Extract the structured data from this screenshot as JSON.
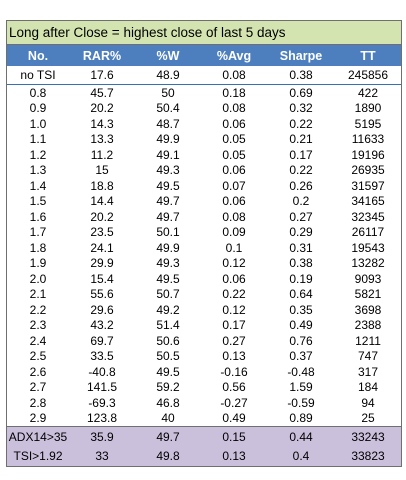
{
  "title": "Long after Close = highest close of last 5 days",
  "headers": [
    "No.",
    "RAR%",
    "%W",
    "%Avg",
    "Sharpe",
    "TT"
  ],
  "baseline": [
    "no TSI",
    "17.6",
    "48.9",
    "0.08",
    "0.38",
    "245856"
  ],
  "rows": [
    [
      "0.8",
      "45.7",
      "50",
      "0.18",
      "0.69",
      "422"
    ],
    [
      "0.9",
      "20.2",
      "50.4",
      "0.08",
      "0.32",
      "1890"
    ],
    [
      "1.0",
      "14.3",
      "48.7",
      "0.06",
      "0.22",
      "5195"
    ],
    [
      "1.1",
      "13.3",
      "49.9",
      "0.05",
      "0.21",
      "11633"
    ],
    [
      "1.2",
      "11.2",
      "49.1",
      "0.05",
      "0.17",
      "19196"
    ],
    [
      "1.3",
      "15",
      "49.3",
      "0.06",
      "0.22",
      "26935"
    ],
    [
      "1.4",
      "18.8",
      "49.5",
      "0.07",
      "0.26",
      "31597"
    ],
    [
      "1.5",
      "14.4",
      "49.7",
      "0.06",
      "0.2",
      "34165"
    ],
    [
      "1.6",
      "20.2",
      "49.7",
      "0.08",
      "0.27",
      "32345"
    ],
    [
      "1.7",
      "23.5",
      "50.1",
      "0.09",
      "0.29",
      "26117"
    ],
    [
      "1.8",
      "24.1",
      "49.9",
      "0.1",
      "0.31",
      "19543"
    ],
    [
      "1.9",
      "29.9",
      "49.3",
      "0.12",
      "0.38",
      "13282"
    ],
    [
      "2.0",
      "15.4",
      "49.5",
      "0.06",
      "0.19",
      "9093"
    ],
    [
      "2.1",
      "55.6",
      "50.7",
      "0.22",
      "0.64",
      "5821"
    ],
    [
      "2.2",
      "29.6",
      "49.2",
      "0.12",
      "0.35",
      "3698"
    ],
    [
      "2.3",
      "43.2",
      "51.4",
      "0.17",
      "0.49",
      "2388"
    ],
    [
      "2.4",
      "69.7",
      "50.6",
      "0.27",
      "0.76",
      "1211"
    ],
    [
      "2.5",
      "33.5",
      "50.5",
      "0.13",
      "0.37",
      "747"
    ],
    [
      "2.6",
      "-40.8",
      "49.5",
      "-0.16",
      "-0.48",
      "317"
    ],
    [
      "2.7",
      "141.5",
      "59.2",
      "0.56",
      "1.59",
      "184"
    ],
    [
      "2.8",
      "-69.3",
      "46.8",
      "-0.27",
      "-0.59",
      "94"
    ],
    [
      "2.9",
      "123.8",
      "40",
      "0.49",
      "0.89",
      "25"
    ]
  ],
  "summary": [
    [
      "ADX14>35",
      "35.9",
      "49.7",
      "0.15",
      "0.44",
      "33243"
    ],
    [
      "TSI>1.92",
      "33",
      "49.8",
      "0.13",
      "0.4",
      "33823"
    ]
  ],
  "colors": {
    "title_bg": "#d4e4b0",
    "header_bg": "#4d7fbf",
    "summary_bg": "#cbc0dc"
  }
}
